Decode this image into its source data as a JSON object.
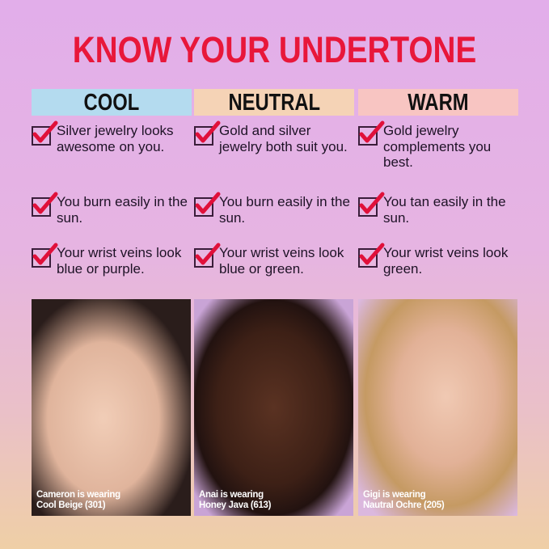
{
  "title": "KNOW YOUR UNDERTONE",
  "columns": [
    {
      "label": "COOL",
      "color": "#b4dbef",
      "items": [
        "Silver jewelry looks awesome on you.",
        "You burn easily in the sun.",
        "Your wrist veins look blue or purple."
      ],
      "photo_caption": [
        "Cameron is wearing",
        "Cool Beige (301)"
      ]
    },
    {
      "label": "NEUTRAL",
      "color": "#f5d3b6",
      "items": [
        "Gold and silver jewelry both suit you.",
        "You burn easily in the sun.",
        "Your wrist veins look blue or green."
      ],
      "photo_caption": [
        "Anai is wearing",
        "Honey Java (613)"
      ]
    },
    {
      "label": "WARM",
      "color": "#f8c5c2",
      "items": [
        "Gold jewelry complements you best.",
        "You tan easily in the sun.",
        "Your wrist veins look green."
      ],
      "photo_caption": [
        "Gigi is wearing",
        "Nautral Ochre (205)"
      ]
    }
  ],
  "colors": {
    "title": "#e8173a",
    "check": "#e0103a"
  }
}
